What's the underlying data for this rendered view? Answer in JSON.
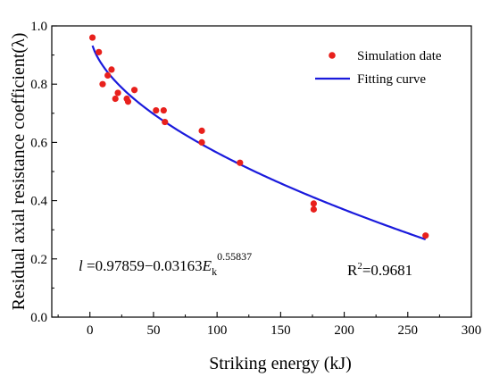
{
  "chart_data": {
    "type": "scatter",
    "xlabel": "Striking energy (kJ)",
    "ylabel": "Residual axial resistance coefficient(λ)",
    "xlim": [
      -30,
      300
    ],
    "ylim": [
      0,
      1.0
    ],
    "x_ticks": [
      0,
      50,
      100,
      150,
      200,
      250,
      300
    ],
    "y_ticks": [
      0.0,
      0.2,
      0.4,
      0.6,
      0.8,
      1.0
    ],
    "x_tick_labels": [
      "0",
      "50",
      "100",
      "150",
      "200",
      "250",
      "300"
    ],
    "y_tick_labels": [
      "0.0",
      "0.2",
      "0.4",
      "0.6",
      "0.8",
      "1.0"
    ],
    "grid": false,
    "legend_position": "top-right",
    "colors": {
      "points": "#e8201c",
      "curve": "#1a1adc",
      "axes": "#000000"
    },
    "series": [
      {
        "name": "Simulation date",
        "kind": "scatter",
        "points": [
          [
            2,
            0.96
          ],
          [
            7,
            0.91
          ],
          [
            10,
            0.8
          ],
          [
            14,
            0.83
          ],
          [
            17,
            0.85
          ],
          [
            20,
            0.75
          ],
          [
            22,
            0.77
          ],
          [
            29,
            0.75
          ],
          [
            30,
            0.74
          ],
          [
            35,
            0.78
          ],
          [
            52,
            0.71
          ],
          [
            58,
            0.71
          ],
          [
            59,
            0.67
          ],
          [
            88,
            0.64
          ],
          [
            88,
            0.6
          ],
          [
            118,
            0.53
          ],
          [
            176,
            0.39
          ],
          [
            176,
            0.37
          ],
          [
            264,
            0.28
          ]
        ]
      },
      {
        "name": "Fitting curve",
        "kind": "line",
        "x_range": [
          2,
          264
        ],
        "model": {
          "a": 0.97859,
          "b": 0.03163,
          "c": 0.55837
        }
      }
    ],
    "annotations": {
      "equation_var": "l",
      "equation_main": " =0.97859−0.03163",
      "equation_E": "E",
      "equation_sub": "k",
      "equation_exp": "0.55837",
      "r2_prefix": "R",
      "r2_exp": "2",
      "r2_value": "=0.9681"
    }
  }
}
